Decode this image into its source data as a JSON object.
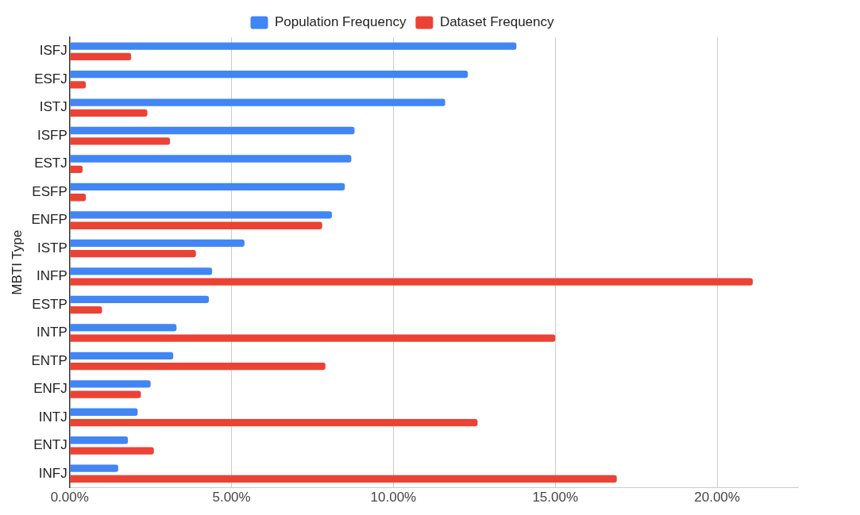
{
  "chart_data": {
    "type": "bar",
    "orientation": "horizontal",
    "ylabel": "MBTI Type",
    "categories": [
      "ISFJ",
      "ESFJ",
      "ISTJ",
      "ISFP",
      "ESTJ",
      "ESFP",
      "ENFP",
      "ISTP",
      "INFP",
      "ESTP",
      "INTP",
      "ENTP",
      "ENFJ",
      "INTJ",
      "ENTJ",
      "INFJ"
    ],
    "series": [
      {
        "name": "Population Frequency",
        "color": "#4285f4",
        "values": [
          13.8,
          12.3,
          11.6,
          8.8,
          8.7,
          8.5,
          8.1,
          5.4,
          4.4,
          4.3,
          3.3,
          3.2,
          2.5,
          2.1,
          1.8,
          1.5
        ]
      },
      {
        "name": "Dataset Frequency",
        "color": "#ea4335",
        "values": [
          1.9,
          0.5,
          2.4,
          3.1,
          0.4,
          0.5,
          7.8,
          3.9,
          21.1,
          1.0,
          15.0,
          7.9,
          2.2,
          12.6,
          2.6,
          16.9
        ]
      }
    ],
    "xlim": [
      0,
      22.5
    ],
    "xticks": [
      {
        "value": 0,
        "label": "0.00%"
      },
      {
        "value": 5,
        "label": "5.00%"
      },
      {
        "value": 10,
        "label": "10.00%"
      },
      {
        "value": 15,
        "label": "15.00%"
      },
      {
        "value": 20,
        "label": "20.00%"
      }
    ],
    "grid": "x",
    "legend": "top"
  }
}
